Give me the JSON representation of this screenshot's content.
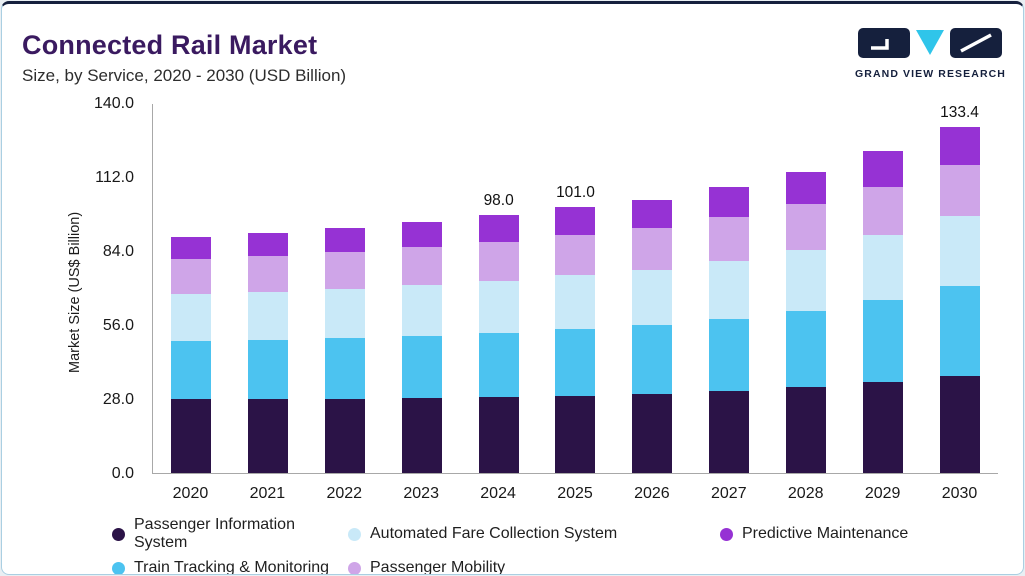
{
  "header": {
    "title": "Connected Rail Market",
    "subtitle": "Size, by Service, 2020 - 2030 (USD Billion)"
  },
  "logo": {
    "text": "GRAND VIEW RESEARCH",
    "navy": "#15203d",
    "cyan": "#2fc5ea"
  },
  "chart_data": {
    "type": "bar",
    "stacked": true,
    "title": "Connected Rail Market Size, by Service, 2020 - 2030 (USD Billion)",
    "ylabel": "Market Size (US$ Billion)",
    "ylim": [
      0,
      140
    ],
    "yticks": [
      "0.0",
      "28.0",
      "56.0",
      "84.0",
      "112.0",
      "140.0"
    ],
    "grid": false,
    "legend_position": "bottom",
    "categories": [
      "2020",
      "2021",
      "2022",
      "2023",
      "2024",
      "2025",
      "2026",
      "2027",
      "2028",
      "2029",
      "2030"
    ],
    "series": [
      {
        "name": "Passenger Information System",
        "color": "#2b1347",
        "values": [
          28.0,
          28.0,
          28.2,
          28.4,
          28.7,
          29.2,
          30.0,
          31.0,
          32.6,
          34.4,
          37.4
        ]
      },
      {
        "name": "Train Tracking & Monitoring",
        "color": "#4cc3f0",
        "values": [
          21.9,
          22.4,
          23.0,
          23.6,
          24.4,
          25.3,
          26.0,
          27.4,
          29.0,
          31.2,
          34.6
        ]
      },
      {
        "name": "Automated Fare Collection System",
        "color": "#c9e9f8",
        "values": [
          18.0,
          18.4,
          18.8,
          19.3,
          19.9,
          20.6,
          21.2,
          22.2,
          23.2,
          24.6,
          27.0
        ]
      },
      {
        "name": "Passenger Mobility",
        "color": "#cfa5e8",
        "values": [
          13.2,
          13.5,
          13.9,
          14.3,
          14.8,
          15.3,
          15.6,
          16.4,
          17.2,
          18.4,
          19.6
        ]
      },
      {
        "name": "Predictive Maintenance",
        "color": "#9632d4",
        "values": [
          8.6,
          8.9,
          9.2,
          9.6,
          10.2,
          10.6,
          10.8,
          11.4,
          12.2,
          13.4,
          14.8
        ]
      }
    ],
    "totals": [
      89.7,
      91.2,
      93.1,
      95.2,
      98.0,
      101.0,
      103.6,
      108.4,
      114.2,
      122.0,
      133.4
    ],
    "bar_labels": {
      "2024": "98.0",
      "2025": "101.0",
      "2030": "133.4"
    },
    "legend_order": [
      0,
      2,
      4,
      1,
      3
    ]
  }
}
